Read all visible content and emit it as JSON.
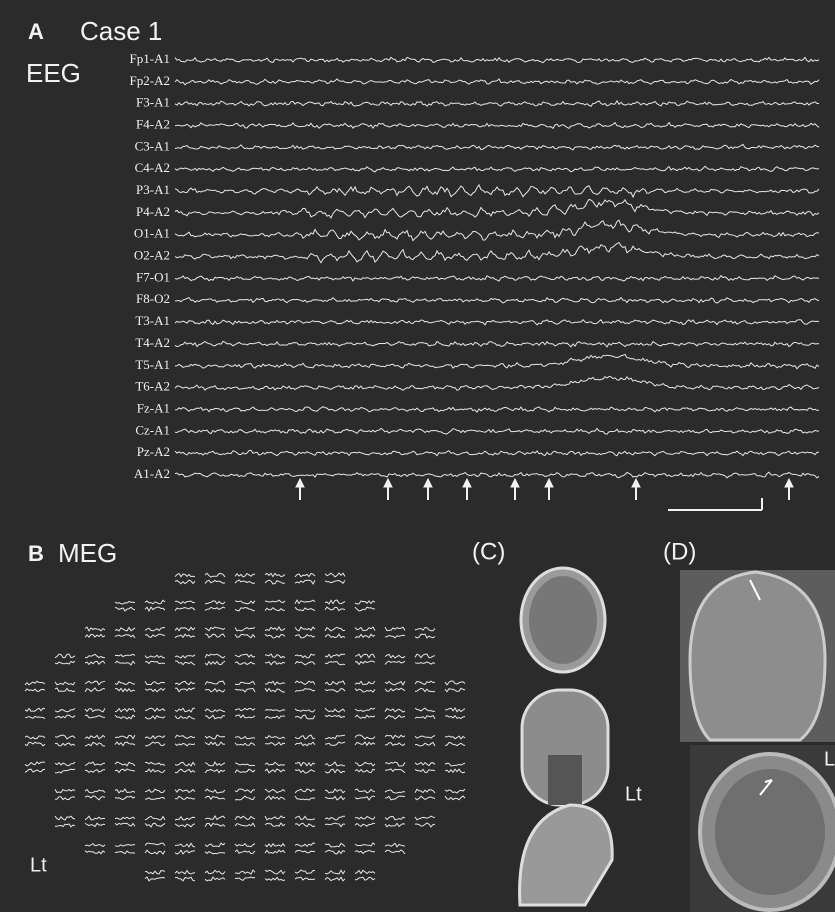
{
  "panel_a": {
    "letter": "A",
    "title": "Case 1",
    "modality": "EEG",
    "channels": [
      "Fp1-A1",
      "Fp2-A2",
      "F3-A1",
      "F4-A2",
      "C3-A1",
      "C4-A2",
      "P3-A1",
      "P4-A2",
      "O1-A1",
      "O2-A2",
      "F7-O1",
      "F8-O2",
      "T3-A1",
      "T4-A2",
      "T5-A1",
      "T6-A2",
      "Fz-A1",
      "Cz-A1",
      "Pz-A2",
      "A1-A2"
    ]
  },
  "panel_b": {
    "letter": "B",
    "title": "MEG",
    "side": "Lt"
  },
  "panel_c": {
    "label": "(C)",
    "side": "Lt"
  },
  "panel_d": {
    "label": "(D)",
    "side": "L"
  }
}
